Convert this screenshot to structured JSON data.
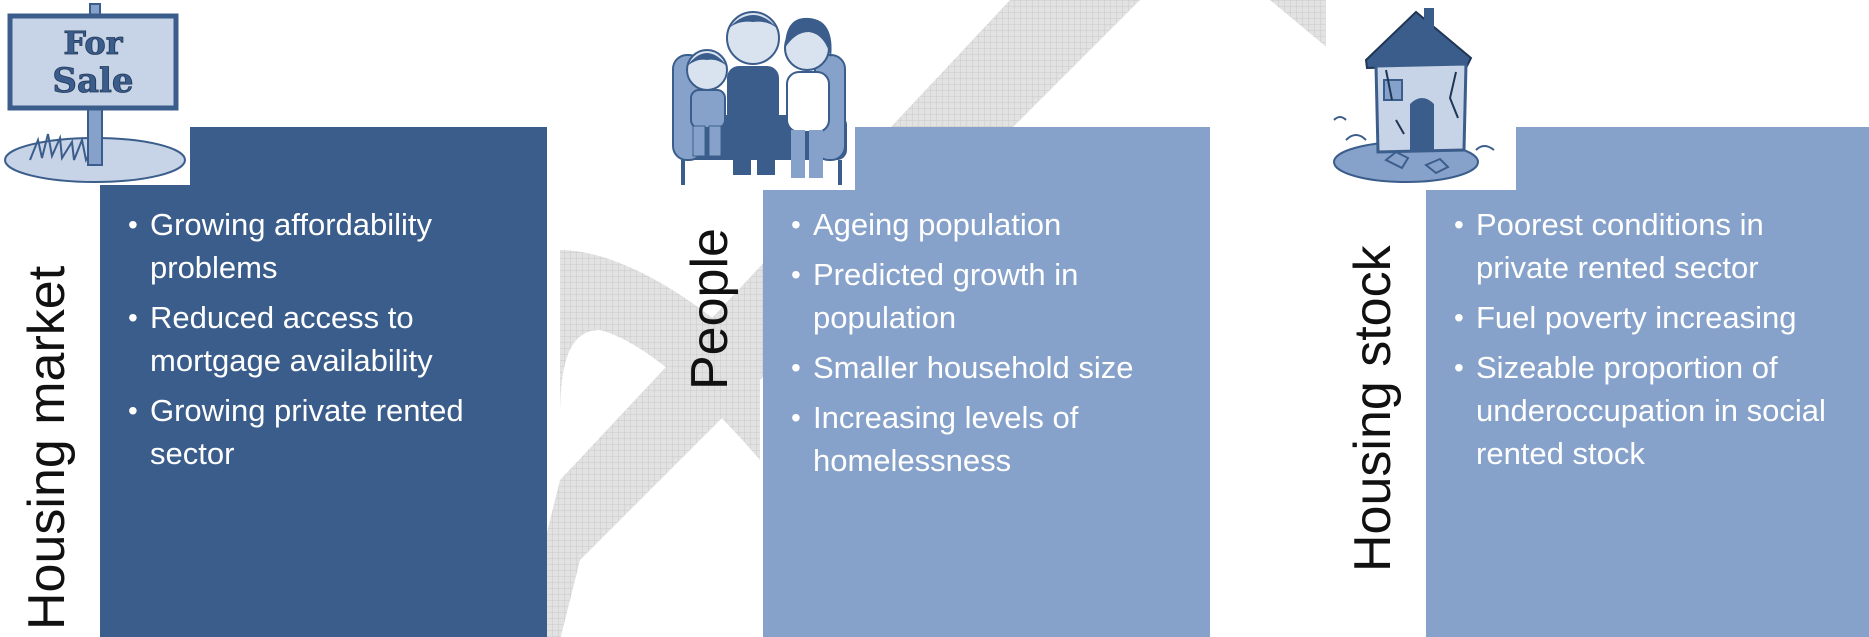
{
  "colors": {
    "panel_dark": "#3b5d8b",
    "panel_light": "#87a2ca",
    "arrow_fill": "#d6d6d6",
    "label_text": "#111111"
  },
  "icons": [
    "for-sale-sign-icon",
    "family-icon",
    "crumbling-house-icon"
  ],
  "sign": {
    "line1": "For",
    "line2": "Sale"
  },
  "columns": [
    {
      "label": "Housing market",
      "bullets": [
        "Growing affordability problems",
        "Reduced access to mortgage availability",
        "Growing private rented sector"
      ]
    },
    {
      "label": "People",
      "bullets": [
        "Ageing population",
        "Predicted growth in population",
        "Smaller household  size",
        "Increasing levels of homelessness"
      ]
    },
    {
      "label": "Housing stock",
      "bullets": [
        "Poorest conditions  in private rented sector",
        "Fuel poverty increasing",
        "Sizeable proportion of underoccupation in social rented stock"
      ]
    }
  ]
}
